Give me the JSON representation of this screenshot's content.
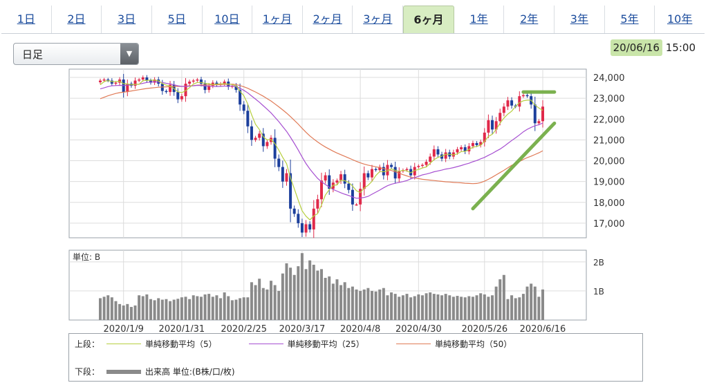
{
  "tabs": [
    {
      "label": "1日"
    },
    {
      "label": "2日"
    },
    {
      "label": "3日"
    },
    {
      "label": "5日"
    },
    {
      "label": "10日"
    },
    {
      "label": "1ヶ月"
    },
    {
      "label": "2ヶ月"
    },
    {
      "label": "3ヶ月"
    },
    {
      "label": "6ヶ月",
      "active": true
    },
    {
      "label": "1年"
    },
    {
      "label": "2年"
    },
    {
      "label": "3年"
    },
    {
      "label": "5年"
    },
    {
      "label": "10年"
    }
  ],
  "dropdown": {
    "value": "日足"
  },
  "datetime": {
    "date": "20/06/16",
    "time": "15:00"
  },
  "colors": {
    "ma5": "#b7cf3f",
    "ma25": "#a64fd1",
    "ma50": "#e07a56",
    "up": "#e0294a",
    "down": "#1c3f9c",
    "volume": "#8a8a8a",
    "trend": "#74ad46"
  },
  "chart_data": {
    "type": "candlestick",
    "price_axis": {
      "min": 16300,
      "max": 24400,
      "ticks": [
        "24,000",
        "23,000",
        "22,000",
        "21,000",
        "20,000",
        "19,000",
        "18,000",
        "17,000"
      ],
      "tick_values": [
        24000,
        23000,
        22000,
        21000,
        20000,
        19000,
        18000,
        17000
      ]
    },
    "volume_axis": {
      "unit_label": "単位: B",
      "max": 2.4,
      "ticks": [
        "2B",
        "1B"
      ],
      "tick_values": [
        2,
        1
      ]
    },
    "x_labels": [
      "2020/1/9",
      "2020/1/31",
      "2020/2/25",
      "2020/3/17",
      "2020/4/8",
      "2020/4/30",
      "2020/5/26",
      "2020/6/16"
    ],
    "x_label_index": [
      6,
      21,
      37,
      52,
      67,
      82,
      99,
      114
    ],
    "close": [
      23850,
      23900,
      23850,
      23700,
      23750,
      23900,
      23300,
      23700,
      23600,
      23850,
      23900,
      24000,
      23850,
      23750,
      23900,
      23700,
      23350,
      23300,
      23650,
      23300,
      22950,
      23100,
      23700,
      23800,
      23850,
      23900,
      23700,
      23400,
      23600,
      23750,
      23650,
      23700,
      23800,
      23550,
      23600,
      23400,
      22700,
      22400,
      21650,
      21000,
      21100,
      21300,
      20700,
      20900,
      21100,
      20100,
      19700,
      19000,
      19400,
      17700,
      17450,
      17000,
      16550,
      16950,
      16700,
      17700,
      18150,
      19050,
      19300,
      18650,
      18950,
      19050,
      19350,
      18900,
      18600,
      17900,
      17900,
      18650,
      19400,
      19200,
      19600,
      19550,
      19700,
      19300,
      19800,
      19700,
      19150,
      19500,
      19550,
      19600,
      19300,
      19700,
      19750,
      19800,
      19950,
      20200,
      20550,
      20300,
      20100,
      20400,
      20200,
      20400,
      20550,
      20650,
      20450,
      20700,
      20850,
      20750,
      20900,
      21350,
      21950,
      21500,
      21900,
      22300,
      22600,
      22900,
      22650,
      22600,
      23100,
      23150,
      23100,
      22700,
      21800,
      21900,
      22600
    ],
    "ma5": [
      23650,
      23800,
      23850,
      23800,
      23800,
      23820,
      23700,
      23690,
      23650,
      23670,
      23670,
      23850,
      23860,
      23870,
      23870,
      23840,
      23710,
      23630,
      23580,
      23460,
      23310,
      23270,
      23360,
      23510,
      23680,
      23760,
      23760,
      23720,
      23700,
      23660,
      23680,
      23690,
      23700,
      23680,
      23660,
      23590,
      23340,
      23120,
      22730,
      22210,
      21750,
      21500,
      21150,
      21000,
      21020,
      20820,
      20510,
      20160,
      19860,
      19180,
      18650,
      18110,
      17600,
      17340,
      17160,
      17350,
      17460,
      17870,
      18350,
      18610,
      18820,
      18840,
      19070,
      19040,
      18960,
      18790,
      18560,
      18470,
      18690,
      18820,
      19010,
      19290,
      19480,
      19470,
      19510,
      19610,
      19540,
      19490,
      19540,
      19510,
      19420,
      19530,
      19580,
      19650,
      19700,
      19880,
      20050,
      20160,
      20220,
      20310,
      20310,
      20280,
      20330,
      20440,
      20450,
      20540,
      20650,
      20690,
      20750,
      20930,
      21170,
      21270,
      21500,
      21800,
      22050,
      22240,
      22380,
      22610,
      22790,
      22880,
      22910,
      22910,
      22670,
      22530,
      22420
    ],
    "ma25": [
      23450,
      23500,
      23560,
      23600,
      23610,
      23620,
      23610,
      23630,
      23640,
      23660,
      23680,
      23720,
      23760,
      23780,
      23790,
      23780,
      23760,
      23720,
      23690,
      23650,
      23600,
      23570,
      23570,
      23580,
      23600,
      23620,
      23610,
      23590,
      23580,
      23570,
      23560,
      23570,
      23580,
      23580,
      23590,
      23560,
      23480,
      23380,
      23260,
      23110,
      22960,
      22810,
      22640,
      22470,
      22300,
      22090,
      21880,
      21640,
      21410,
      21130,
      20830,
      20520,
      20180,
      19870,
      19600,
      19370,
      19150,
      18990,
      18860,
      18730,
      18620,
      18540,
      18460,
      18390,
      18330,
      18260,
      18200,
      18210,
      18240,
      18290,
      18390,
      18490,
      18590,
      18700,
      18800,
      18870,
      18920,
      18960,
      19000,
      19050,
      19130,
      19190,
      19250,
      19320,
      19360,
      19410,
      19470,
      19510,
      19550,
      19600,
      19630,
      19670,
      19720,
      19770,
      19830,
      19880,
      19950,
      20010,
      20090,
      20160,
      20260,
      20350,
      20460,
      20560,
      20690,
      20830,
      20970,
      21100,
      21240,
      21390,
      21510,
      21600,
      21680,
      21730,
      21810
    ],
    "ma50": [
      22980,
      23050,
      23120,
      23180,
      23230,
      23270,
      23290,
      23320,
      23350,
      23380,
      23410,
      23440,
      23470,
      23490,
      23510,
      23530,
      23540,
      23550,
      23560,
      23570,
      23570,
      23570,
      23580,
      23600,
      23610,
      23630,
      23640,
      23640,
      23640,
      23650,
      23650,
      23660,
      23670,
      23670,
      23680,
      23660,
      23610,
      23550,
      23480,
      23390,
      23300,
      23200,
      23100,
      22980,
      22870,
      22730,
      22590,
      22440,
      22290,
      22120,
      21940,
      21760,
      21560,
      21370,
      21190,
      21040,
      20900,
      20770,
      20660,
      20560,
      20460,
      20370,
      20290,
      20210,
      20130,
      20050,
      19970,
      19900,
      19840,
      19790,
      19750,
      19710,
      19670,
      19620,
      19580,
      19530,
      19470,
      19400,
      19330,
      19270,
      19210,
      19170,
      19140,
      19110,
      19090,
      19070,
      19050,
      19030,
      19010,
      18990,
      18980,
      18960,
      18950,
      18940,
      18920,
      18910,
      18900,
      18910,
      18950,
      19020,
      19110,
      19210,
      19320,
      19430,
      19540,
      19660,
      19780,
      19870,
      19960,
      20060,
      20150,
      20220,
      20300,
      20380,
      20480
    ],
    "volume": [
      0.75,
      0.8,
      0.85,
      0.78,
      0.65,
      0.55,
      0.5,
      0.55,
      0.45,
      0.5,
      0.85,
      0.82,
      0.88,
      0.72,
      0.68,
      0.75,
      0.7,
      0.72,
      0.65,
      0.7,
      0.73,
      0.78,
      0.8,
      0.72,
      0.85,
      0.82,
      0.8,
      0.88,
      0.9,
      0.8,
      0.85,
      0.75,
      0.95,
      0.82,
      0.68,
      0.7,
      0.75,
      0.78,
      0.78,
      1.3,
      1.2,
      1.42,
      1.1,
      1.05,
      1.35,
      1.2,
      1.0,
      1.6,
      1.95,
      1.8,
      1.55,
      1.85,
      2.3,
      1.75,
      2.05,
      1.9,
      1.7,
      1.75,
      1.45,
      1.5,
      1.25,
      1.4,
      1.2,
      1.3,
      1.1,
      1.15,
      1.05,
      1.0,
      1.05,
      1.1,
      1.0,
      0.98,
      1.05,
      1.1,
      0.85,
      0.95,
      0.9,
      0.8,
      0.85,
      0.9,
      0.78,
      0.82,
      0.88,
      0.85,
      0.92,
      0.95,
      0.9,
      0.88,
      0.85,
      0.9,
      0.85,
      0.8,
      0.83,
      0.8,
      0.78,
      0.82,
      0.8,
      0.85,
      0.92,
      0.88,
      0.8,
      0.85,
      1.15,
      1.4,
      1.55,
      0.72,
      0.85,
      0.75,
      0.78,
      0.9,
      1.15,
      1.25,
      1.15,
      0.8,
      1.05
    ],
    "trendlines": [
      {
        "from": [
          96,
          17700
        ],
        "to": [
          117,
          21800
        ]
      },
      {
        "from": [
          109,
          23300
        ],
        "to": [
          117,
          23300
        ]
      }
    ]
  },
  "legend": {
    "top_label": "上段：",
    "items": [
      {
        "label": "単純移動平均（5）"
      },
      {
        "label": "単純移動平均（25）"
      },
      {
        "label": "単純移動平均（50）"
      }
    ],
    "bottom_label": "下段：",
    "volume_label": "出来高 単位:(B株/口/枚)"
  }
}
